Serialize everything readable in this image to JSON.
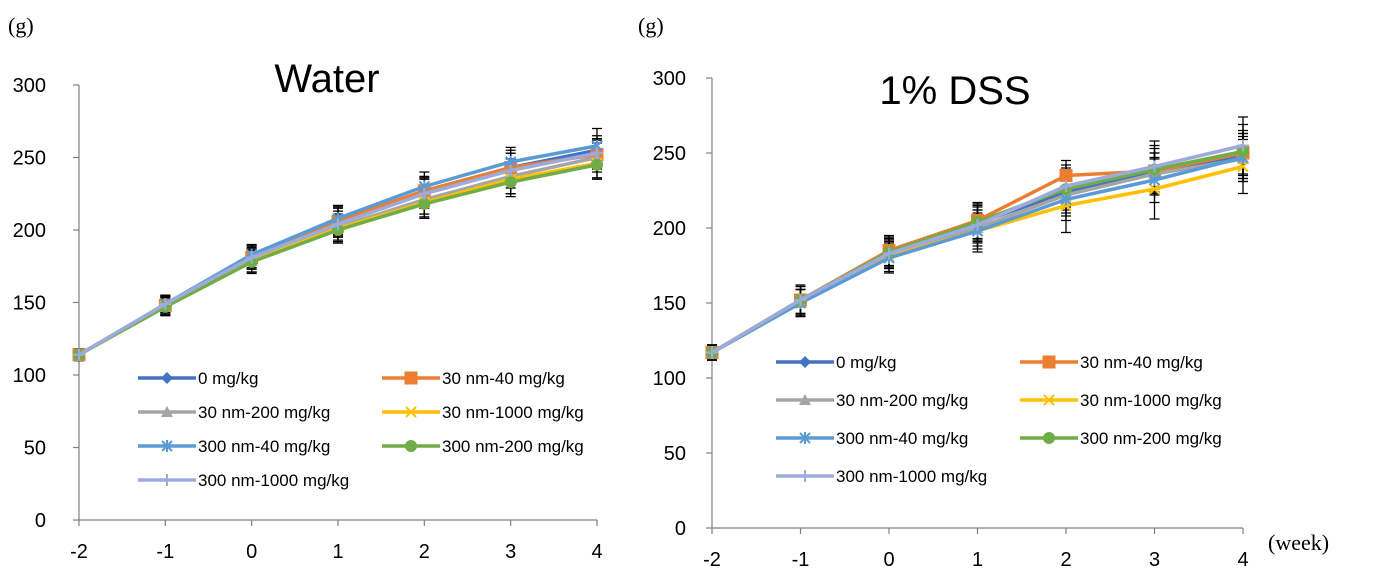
{
  "y_unit_label": "(g)",
  "x_unit_label": "(week)",
  "chart_data": [
    {
      "type": "line",
      "title": "Water",
      "xlabel": "",
      "ylabel": "(g)",
      "x": [
        -2,
        -1,
        0,
        1,
        2,
        3,
        4
      ],
      "xticks": [
        "-2",
        "-1",
        "0",
        "1",
        "2",
        "3",
        "4"
      ],
      "ylim": [
        0,
        300
      ],
      "yticks": [
        0,
        50,
        100,
        150,
        200,
        250,
        300
      ],
      "grid": false,
      "legend": "bottom-center",
      "series": [
        {
          "name": "0 mg/kg",
          "color": "#4472c4",
          "marker": "diamond",
          "values": [
            114,
            148,
            181,
            206,
            227,
            243,
            255
          ],
          "err": [
            4,
            6,
            8,
            10,
            10,
            10,
            10
          ]
        },
        {
          "name": "30 nm-40 mg/kg",
          "color": "#ed7d31",
          "marker": "square",
          "values": [
            114,
            148,
            181,
            206,
            227,
            243,
            252
          ],
          "err": [
            4,
            7,
            7,
            9,
            9,
            12,
            10
          ]
        },
        {
          "name": "30 nm-200 mg/kg",
          "color": "#a5a5a5",
          "marker": "triangle",
          "values": [
            114,
            148,
            179,
            202,
            221,
            237,
            250
          ],
          "err": [
            4,
            6,
            8,
            9,
            10,
            12,
            10
          ]
        },
        {
          "name": "30 nm-1000 mg/kg",
          "color": "#ffc000",
          "marker": "x",
          "values": [
            114,
            148,
            179,
            201,
            219,
            235,
            246
          ],
          "err": [
            4,
            6,
            8,
            9,
            10,
            10,
            10
          ]
        },
        {
          "name": "300 nm-40 mg/kg",
          "color": "#5b9bd5",
          "marker": "asterisk",
          "values": [
            114,
            149,
            183,
            208,
            230,
            247,
            258
          ],
          "err": [
            4,
            6,
            7,
            9,
            10,
            10,
            12
          ]
        },
        {
          "name": "300 nm-200 mg/kg",
          "color": "#70ad47",
          "marker": "circle",
          "values": [
            114,
            147,
            178,
            200,
            218,
            233,
            245
          ],
          "err": [
            4,
            6,
            8,
            9,
            10,
            10,
            10
          ]
        },
        {
          "name": "300 nm-1000 mg/kg",
          "color": "#9dabdc",
          "marker": "plus",
          "values": [
            114,
            149,
            181,
            204,
            225,
            241,
            253
          ],
          "err": [
            4,
            6,
            8,
            9,
            10,
            12,
            10
          ]
        }
      ]
    },
    {
      "type": "line",
      "title": "1% DSS",
      "xlabel": "(week)",
      "ylabel": "(g)",
      "x": [
        -2,
        -1,
        0,
        1,
        2,
        3,
        4
      ],
      "xticks": [
        "-2",
        "-1",
        "0",
        "1",
        "2",
        "3",
        "4"
      ],
      "ylim": [
        0,
        300
      ],
      "yticks": [
        0,
        50,
        100,
        150,
        200,
        250,
        300
      ],
      "grid": false,
      "legend": "bottom-center",
      "series": [
        {
          "name": "0 mg/kg",
          "color": "#4472c4",
          "marker": "diamond",
          "values": [
            117,
            151,
            183,
            203,
            224,
            238,
            248
          ],
          "err": [
            5,
            8,
            9,
            12,
            14,
            15,
            15
          ]
        },
        {
          "name": "30 nm-40 mg/kg",
          "color": "#ed7d31",
          "marker": "square",
          "values": [
            117,
            152,
            185,
            205,
            235,
            238,
            250
          ],
          "err": [
            5,
            10,
            10,
            12,
            10,
            12,
            15
          ]
        },
        {
          "name": "30 nm-200 mg/kg",
          "color": "#a5a5a5",
          "marker": "triangle",
          "values": [
            117,
            150,
            183,
            200,
            222,
            236,
            246
          ],
          "err": [
            5,
            9,
            10,
            12,
            14,
            14,
            15
          ]
        },
        {
          "name": "30 nm-1000 mg/kg",
          "color": "#ffc000",
          "marker": "x",
          "values": [
            117,
            150,
            181,
            198,
            215,
            226,
            241
          ],
          "err": [
            5,
            9,
            10,
            14,
            18,
            20,
            18
          ]
        },
        {
          "name": "300 nm-40 mg/kg",
          "color": "#5b9bd5",
          "marker": "asterisk",
          "values": [
            117,
            150,
            180,
            198,
            219,
            232,
            247
          ],
          "err": [
            5,
            9,
            10,
            12,
            14,
            15,
            16
          ]
        },
        {
          "name": "300 nm-200 mg/kg",
          "color": "#70ad47",
          "marker": "circle",
          "values": [
            117,
            152,
            184,
            204,
            226,
            239,
            251
          ],
          "err": [
            5,
            9,
            10,
            12,
            14,
            16,
            18
          ]
        },
        {
          "name": "300 nm-1000 mg/kg",
          "color": "#9dabdc",
          "marker": "plus",
          "values": [
            117,
            152,
            183,
            202,
            228,
            241,
            255
          ],
          "err": [
            5,
            9,
            10,
            12,
            14,
            17,
            19
          ]
        }
      ]
    }
  ]
}
